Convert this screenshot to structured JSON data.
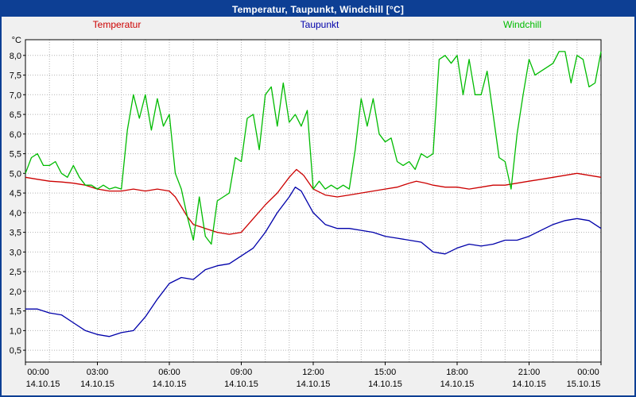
{
  "window": {
    "title": "Temperatur, Taupunkt, Windchill [°C]"
  },
  "legend": [
    {
      "label": "Temperatur",
      "color": "#cc0000"
    },
    {
      "label": "Taupunkt",
      "color": "#0000aa"
    },
    {
      "label": "Windchill",
      "color": "#00bb00"
    }
  ],
  "colors": {
    "title_bar": "#0d3f94",
    "window_border": "#0d3f94",
    "outer_background": "#f0f0f0",
    "plot_background": "#ffffff",
    "grid": "#b4b4b4",
    "plot_border": "#000000"
  },
  "chart_data": {
    "type": "line",
    "title": "Temperatur, Taupunkt, Windchill [°C]",
    "xlabel": "",
    "ylabel": "°C",
    "grid": "dotted",
    "legend_position": "top",
    "ylim": [
      0.2,
      8.4
    ],
    "yticks": [
      0.5,
      1.0,
      1.5,
      2.0,
      2.5,
      3.0,
      3.5,
      4.0,
      4.5,
      5.0,
      5.5,
      6.0,
      6.5,
      7.0,
      7.5,
      8.0
    ],
    "ytick_labels": [
      "0,5",
      "1,0",
      "1,5",
      "2,0",
      "2,5",
      "3,0",
      "3,5",
      "4,0",
      "4,5",
      "5,0",
      "5,5",
      "6,0",
      "6,5",
      "7,0",
      "7,5",
      "8,0"
    ],
    "x_hours_range": [
      0,
      24
    ],
    "xticks": [
      0,
      3,
      6,
      9,
      12,
      15,
      18,
      21,
      24
    ],
    "xtick_labels": [
      "00:00",
      "03:00",
      "06:00",
      "09:00",
      "12:00",
      "15:00",
      "18:00",
      "21:00",
      "00:00"
    ],
    "xtick_dates": [
      "14.10.15",
      "14.10.15",
      "14.10.15",
      "14.10.15",
      "14.10.15",
      "14.10.15",
      "14.10.15",
      "14.10.15",
      "15.10.15"
    ],
    "series": [
      {
        "name": "Temperatur",
        "color": "#cc0000",
        "points": [
          [
            0,
            4.9
          ],
          [
            0.5,
            4.85
          ],
          [
            1,
            4.8
          ],
          [
            1.5,
            4.78
          ],
          [
            2,
            4.75
          ],
          [
            2.5,
            4.7
          ],
          [
            3,
            4.6
          ],
          [
            3.5,
            4.55
          ],
          [
            4,
            4.55
          ],
          [
            4.5,
            4.6
          ],
          [
            5,
            4.55
          ],
          [
            5.5,
            4.6
          ],
          [
            6,
            4.55
          ],
          [
            6.25,
            4.4
          ],
          [
            6.5,
            4.15
          ],
          [
            6.75,
            3.9
          ],
          [
            7,
            3.7
          ],
          [
            7.5,
            3.6
          ],
          [
            8,
            3.5
          ],
          [
            8.5,
            3.45
          ],
          [
            9,
            3.5
          ],
          [
            9.5,
            3.85
          ],
          [
            10,
            4.2
          ],
          [
            10.5,
            4.5
          ],
          [
            11,
            4.9
          ],
          [
            11.3,
            5.1
          ],
          [
            11.6,
            4.95
          ],
          [
            12,
            4.6
          ],
          [
            12.5,
            4.45
          ],
          [
            13,
            4.4
          ],
          [
            13.5,
            4.45
          ],
          [
            14,
            4.5
          ],
          [
            14.5,
            4.55
          ],
          [
            15,
            4.6
          ],
          [
            15.5,
            4.65
          ],
          [
            16,
            4.75
          ],
          [
            16.3,
            4.8
          ],
          [
            16.7,
            4.75
          ],
          [
            17,
            4.7
          ],
          [
            17.5,
            4.65
          ],
          [
            18,
            4.65
          ],
          [
            18.5,
            4.6
          ],
          [
            19,
            4.65
          ],
          [
            19.5,
            4.7
          ],
          [
            20,
            4.7
          ],
          [
            20.5,
            4.75
          ],
          [
            21,
            4.8
          ],
          [
            21.5,
            4.85
          ],
          [
            22,
            4.9
          ],
          [
            22.5,
            4.95
          ],
          [
            23,
            5.0
          ],
          [
            23.5,
            4.95
          ],
          [
            24,
            4.9
          ]
        ]
      },
      {
        "name": "Taupunkt",
        "color": "#0000aa",
        "points": [
          [
            0,
            1.55
          ],
          [
            0.5,
            1.55
          ],
          [
            1,
            1.45
          ],
          [
            1.5,
            1.4
          ],
          [
            2,
            1.2
          ],
          [
            2.5,
            1.0
          ],
          [
            3,
            0.9
          ],
          [
            3.5,
            0.85
          ],
          [
            4,
            0.95
          ],
          [
            4.5,
            1.0
          ],
          [
            5,
            1.35
          ],
          [
            5.5,
            1.8
          ],
          [
            6,
            2.2
          ],
          [
            6.5,
            2.35
          ],
          [
            7,
            2.3
          ],
          [
            7.5,
            2.55
          ],
          [
            8,
            2.65
          ],
          [
            8.5,
            2.7
          ],
          [
            9,
            2.9
          ],
          [
            9.5,
            3.1
          ],
          [
            10,
            3.5
          ],
          [
            10.5,
            4.0
          ],
          [
            11,
            4.4
          ],
          [
            11.25,
            4.65
          ],
          [
            11.5,
            4.55
          ],
          [
            12,
            4.0
          ],
          [
            12.5,
            3.7
          ],
          [
            13,
            3.6
          ],
          [
            13.5,
            3.6
          ],
          [
            14,
            3.55
          ],
          [
            14.5,
            3.5
          ],
          [
            15,
            3.4
          ],
          [
            15.5,
            3.35
          ],
          [
            16,
            3.3
          ],
          [
            16.5,
            3.25
          ],
          [
            17,
            3.0
          ],
          [
            17.5,
            2.95
          ],
          [
            18,
            3.1
          ],
          [
            18.5,
            3.2
          ],
          [
            19,
            3.15
          ],
          [
            19.5,
            3.2
          ],
          [
            20,
            3.3
          ],
          [
            20.5,
            3.3
          ],
          [
            21,
            3.4
          ],
          [
            21.5,
            3.55
          ],
          [
            22,
            3.7
          ],
          [
            22.5,
            3.8
          ],
          [
            23,
            3.85
          ],
          [
            23.5,
            3.8
          ],
          [
            24,
            3.6
          ]
        ]
      },
      {
        "name": "Windchill",
        "color": "#00bb00",
        "points": [
          [
            0,
            5.0
          ],
          [
            0.25,
            5.4
          ],
          [
            0.5,
            5.5
          ],
          [
            0.75,
            5.2
          ],
          [
            1,
            5.2
          ],
          [
            1.25,
            5.3
          ],
          [
            1.5,
            5.0
          ],
          [
            1.75,
            4.9
          ],
          [
            2,
            5.2
          ],
          [
            2.25,
            4.9
          ],
          [
            2.5,
            4.7
          ],
          [
            2.75,
            4.7
          ],
          [
            3,
            4.6
          ],
          [
            3.25,
            4.7
          ],
          [
            3.5,
            4.6
          ],
          [
            3.75,
            4.65
          ],
          [
            4,
            4.6
          ],
          [
            4.25,
            6.1
          ],
          [
            4.5,
            7.0
          ],
          [
            4.75,
            6.4
          ],
          [
            5,
            7.0
          ],
          [
            5.25,
            6.1
          ],
          [
            5.5,
            6.9
          ],
          [
            5.75,
            6.2
          ],
          [
            6,
            6.5
          ],
          [
            6.25,
            5.0
          ],
          [
            6.5,
            4.6
          ],
          [
            6.75,
            3.9
          ],
          [
            7,
            3.3
          ],
          [
            7.25,
            4.4
          ],
          [
            7.5,
            3.4
          ],
          [
            7.75,
            3.2
          ],
          [
            8,
            4.3
          ],
          [
            8.25,
            4.4
          ],
          [
            8.5,
            4.5
          ],
          [
            8.75,
            5.4
          ],
          [
            9,
            5.3
          ],
          [
            9.25,
            6.4
          ],
          [
            9.5,
            6.5
          ],
          [
            9.75,
            5.6
          ],
          [
            10,
            7.0
          ],
          [
            10.25,
            7.2
          ],
          [
            10.5,
            6.2
          ],
          [
            10.75,
            7.3
          ],
          [
            11,
            6.3
          ],
          [
            11.25,
            6.5
          ],
          [
            11.5,
            6.2
          ],
          [
            11.75,
            6.6
          ],
          [
            12,
            4.6
          ],
          [
            12.25,
            4.8
          ],
          [
            12.5,
            4.6
          ],
          [
            12.75,
            4.7
          ],
          [
            13,
            4.6
          ],
          [
            13.25,
            4.7
          ],
          [
            13.5,
            4.6
          ],
          [
            13.75,
            5.6
          ],
          [
            14,
            6.9
          ],
          [
            14.25,
            6.2
          ],
          [
            14.5,
            6.9
          ],
          [
            14.75,
            6.0
          ],
          [
            15,
            5.8
          ],
          [
            15.25,
            5.9
          ],
          [
            15.5,
            5.3
          ],
          [
            15.75,
            5.2
          ],
          [
            16,
            5.3
          ],
          [
            16.25,
            5.1
          ],
          [
            16.5,
            5.5
          ],
          [
            16.75,
            5.4
          ],
          [
            17,
            5.5
          ],
          [
            17.25,
            7.9
          ],
          [
            17.5,
            8.0
          ],
          [
            17.75,
            7.8
          ],
          [
            18,
            8.0
          ],
          [
            18.25,
            7.0
          ],
          [
            18.5,
            7.9
          ],
          [
            18.75,
            7.0
          ],
          [
            19,
            7.0
          ],
          [
            19.25,
            7.6
          ],
          [
            19.5,
            6.5
          ],
          [
            19.75,
            5.4
          ],
          [
            20,
            5.3
          ],
          [
            20.25,
            4.6
          ],
          [
            20.5,
            6.0
          ],
          [
            20.75,
            7.0
          ],
          [
            21,
            7.9
          ],
          [
            21.25,
            7.5
          ],
          [
            21.5,
            7.6
          ],
          [
            21.75,
            7.7
          ],
          [
            22,
            7.8
          ],
          [
            22.25,
            8.1
          ],
          [
            22.5,
            8.1
          ],
          [
            22.75,
            7.3
          ],
          [
            23,
            8.0
          ],
          [
            23.25,
            7.9
          ],
          [
            23.5,
            7.2
          ],
          [
            23.75,
            7.3
          ],
          [
            24,
            8.1
          ]
        ]
      }
    ]
  }
}
